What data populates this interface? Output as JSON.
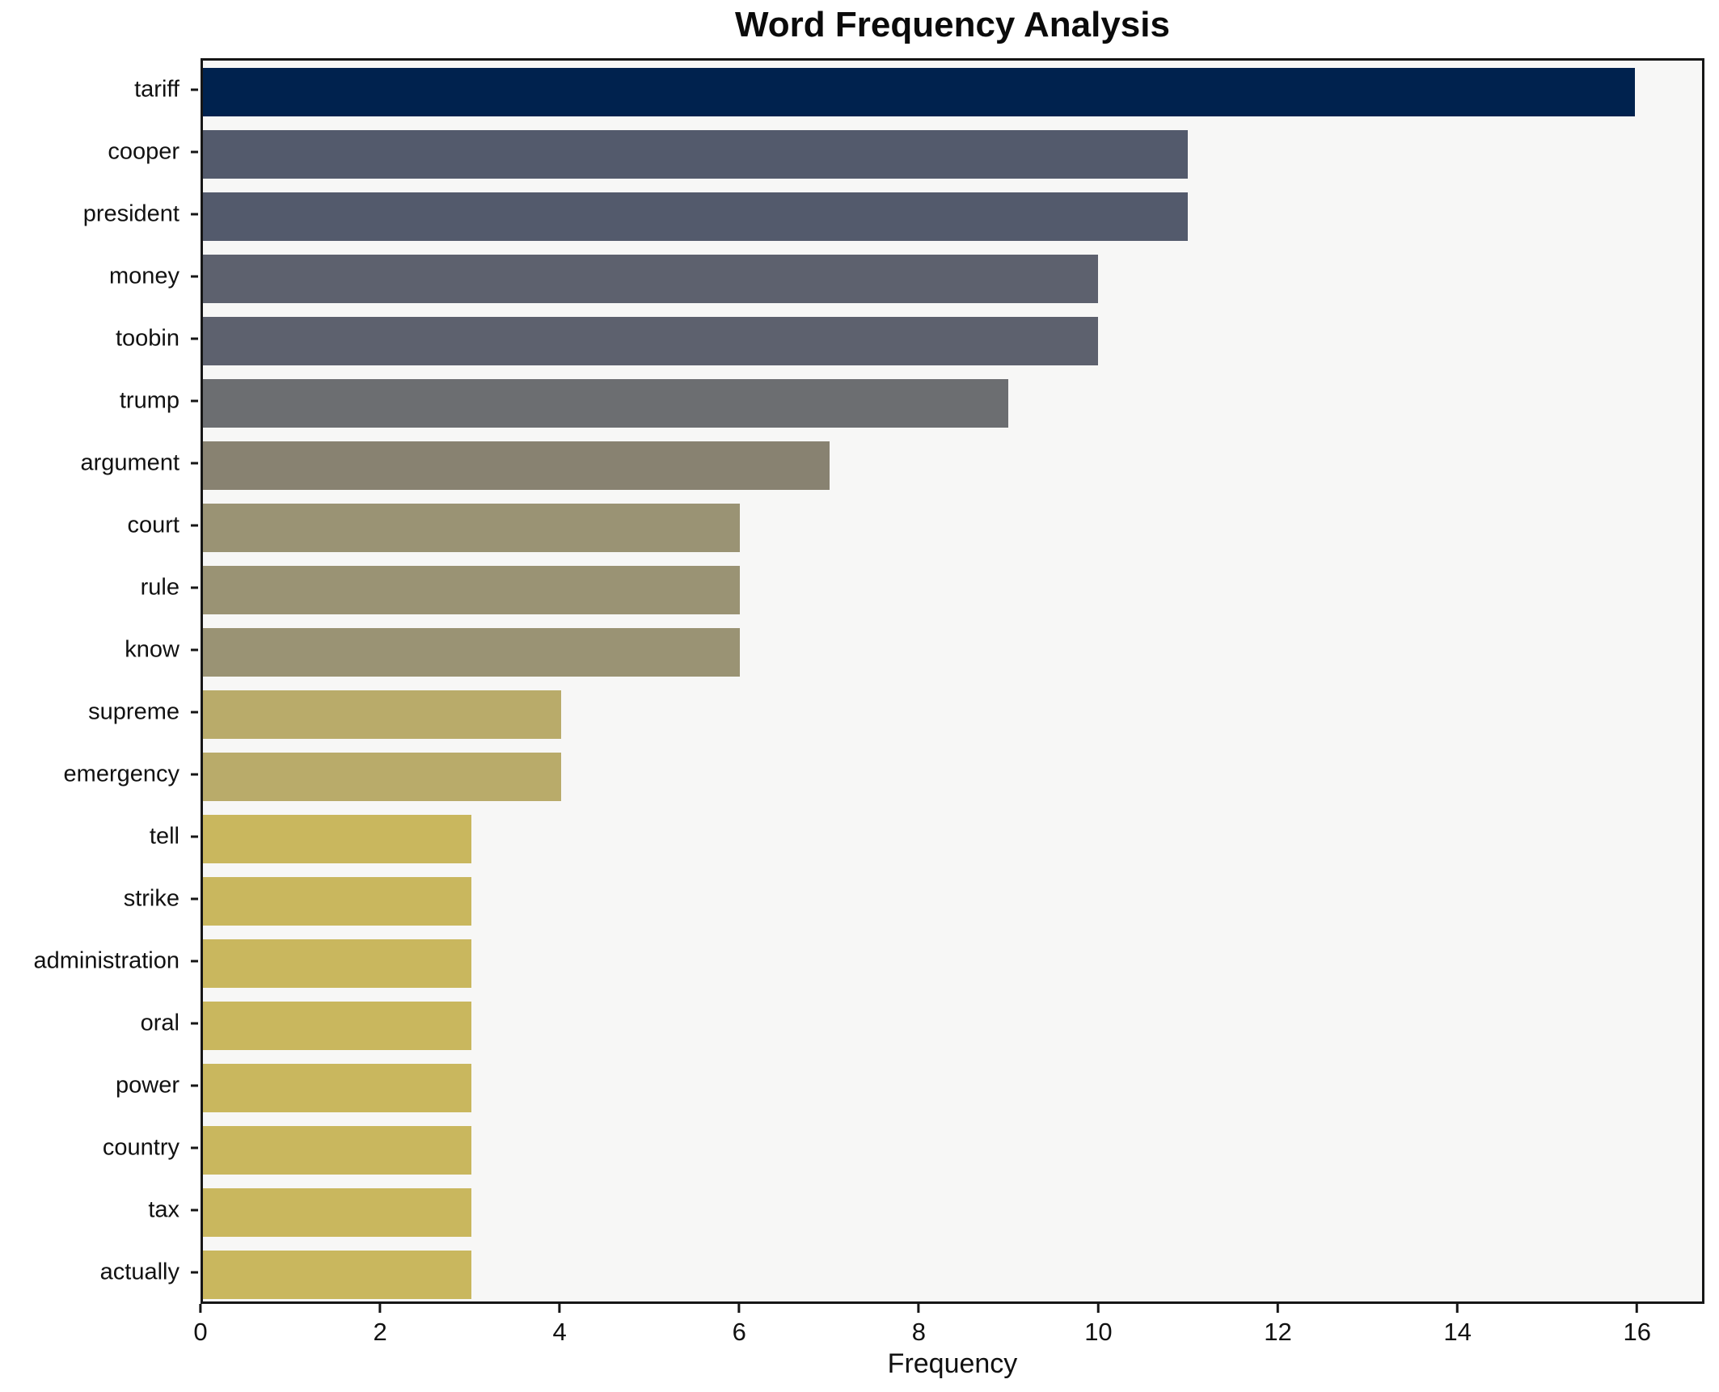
{
  "chart_data": {
    "type": "bar",
    "orientation": "horizontal",
    "title": "Word Frequency Analysis",
    "xlabel": "Frequency",
    "ylabel": "",
    "xlim": [
      0,
      16.75
    ],
    "x_ticks": [
      0,
      2,
      4,
      6,
      8,
      10,
      12,
      14,
      16
    ],
    "grid": false,
    "plot_background": "#f7f7f6",
    "spine_color": "#161616",
    "categories": [
      "tariff",
      "cooper",
      "president",
      "money",
      "toobin",
      "trump",
      "argument",
      "court",
      "rule",
      "know",
      "supreme",
      "emergency",
      "tell",
      "strike",
      "administration",
      "oral",
      "power",
      "country",
      "tax",
      "actually"
    ],
    "values": [
      16,
      11,
      11,
      10,
      10,
      9,
      7,
      6,
      6,
      6,
      4,
      4,
      3,
      3,
      3,
      3,
      3,
      3,
      3,
      3
    ],
    "bar_colors": [
      "#00224e",
      "#535a6c",
      "#535a6c",
      "#5d616e",
      "#5d616e",
      "#6c6e71",
      "#888271",
      "#9a9374",
      "#9a9374",
      "#9a9374",
      "#b9ab6a",
      "#b9ab6a",
      "#c9b75e",
      "#c9b75e",
      "#c9b75e",
      "#c9b75e",
      "#c9b75e",
      "#c9b75e",
      "#c9b75e",
      "#c9b75e"
    ]
  }
}
